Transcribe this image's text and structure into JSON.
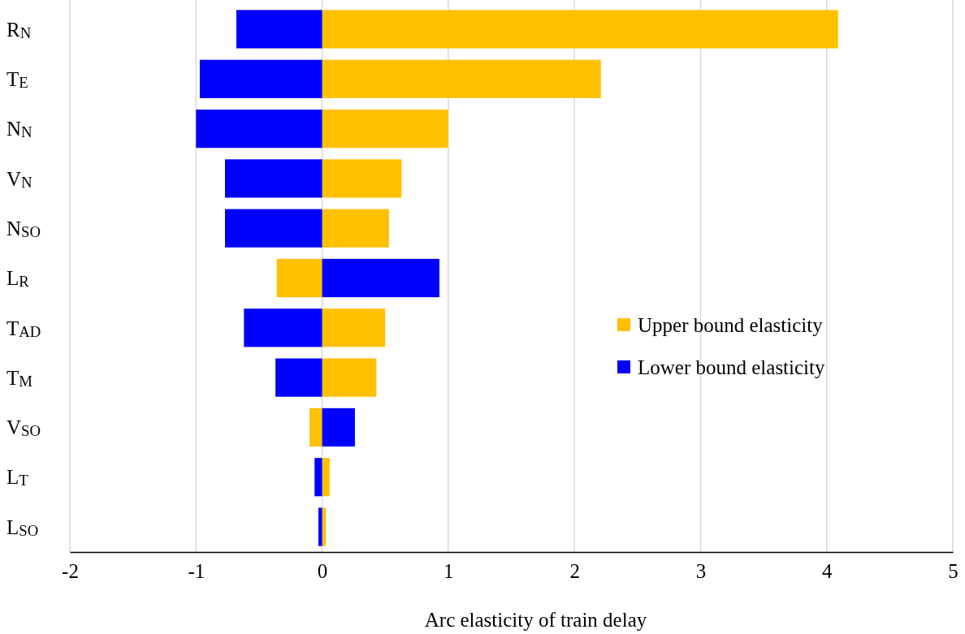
{
  "chart_data": {
    "type": "bar",
    "orientation": "horizontal",
    "stacked": true,
    "xlabel": "Arc elasticity of train delay",
    "categories": [
      "R$_{N}$",
      "T$_{E}$",
      "N$_{N}$",
      "V$_{N}$",
      "N$_{SO}$",
      "L$_{R}$",
      "T$_{AD}$",
      "T$_{M}$",
      "V$_{SO}$",
      "L$_{T}$",
      "L$_{SO}$"
    ],
    "series": [
      {
        "name": "Upper bound elasticity",
        "color": "#ffc000",
        "values": [
          4.09,
          2.21,
          1.0,
          0.63,
          0.53,
          -0.36,
          0.5,
          0.43,
          -0.1,
          0.06,
          0.03
        ]
      },
      {
        "name": "Lower bound elasticity",
        "color": "#0000ff",
        "values": [
          -0.68,
          -0.97,
          -1.0,
          -0.77,
          -0.77,
          0.93,
          -0.62,
          -0.37,
          0.26,
          -0.06,
          -0.03
        ]
      }
    ],
    "xlim": [
      -2,
      5
    ],
    "xticks": [
      -2,
      -1,
      0,
      1,
      2,
      3,
      4,
      5
    ],
    "grid": "x",
    "legend": "right"
  }
}
